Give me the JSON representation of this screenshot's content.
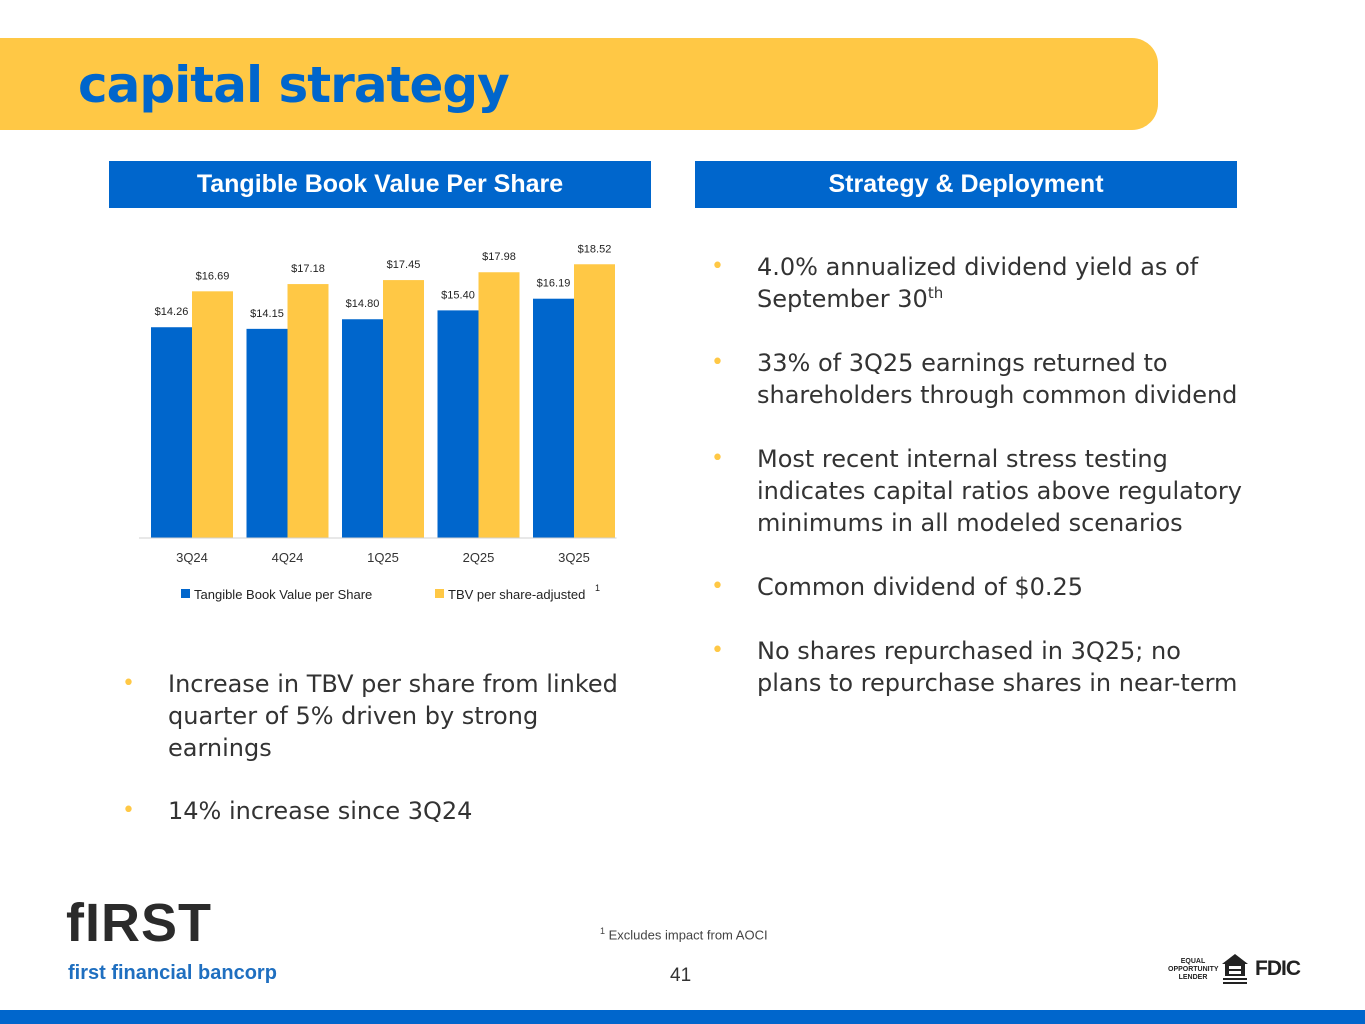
{
  "slide": {
    "title": "capital strategy",
    "page_number": "41",
    "footnote_marker": "1",
    "footnote_text": " Excludes impact from AOCI"
  },
  "left_panel": {
    "header": "Tangible Book Value Per Share",
    "bullets": [
      "Increase in TBV per share from linked quarter of 5% driven by strong earnings",
      "14% increase since 3Q24"
    ]
  },
  "right_panel": {
    "header": "Strategy & Deployment",
    "bullet1_main": "4.0% annualized dividend yield as of September 30",
    "bullet1_sup": "th",
    "bullets_rest": [
      "33% of 3Q25 earnings returned to shareholders through common dividend",
      "Most recent internal stress testing indicates capital ratios above regulatory minimums in all modeled scenarios",
      "Common dividend of $0.25",
      "No shares repurchased in 3Q25; no plans to repurchase shares in near-term"
    ]
  },
  "chart_data": {
    "type": "bar",
    "title": "Tangible Book Value Per Share",
    "categories": [
      "3Q24",
      "4Q24",
      "1Q25",
      "2Q25",
      "3Q25"
    ],
    "series": [
      {
        "name": "Tangible Book Value per Share",
        "color": "#0066cc",
        "values": [
          14.26,
          14.15,
          14.8,
          15.4,
          16.19
        ],
        "labels": [
          "$14.26",
          "$14.15",
          "$14.80",
          "$15.40",
          "$16.19"
        ]
      },
      {
        "name": "TBV per share-adjusted",
        "color": "#ffc845",
        "values": [
          16.69,
          17.18,
          17.45,
          17.98,
          18.52
        ],
        "labels": [
          "$16.69",
          "$17.18",
          "$17.45",
          "$17.98",
          "$18.52"
        ]
      }
    ],
    "legend_marker": "1",
    "ylim": [
      0,
      20.5
    ],
    "grid": false,
    "legend_position": "bottom"
  },
  "branding": {
    "logo_text": "fIRST",
    "company_name": "first financial bancorp",
    "eol_line1": "EQUAL",
    "eol_line2": "OPPORTUNITY",
    "eol_line3": "LENDER",
    "fdic": "FDIC"
  },
  "colors": {
    "primary_blue": "#0066cc",
    "accent_yellow": "#ffc845"
  }
}
